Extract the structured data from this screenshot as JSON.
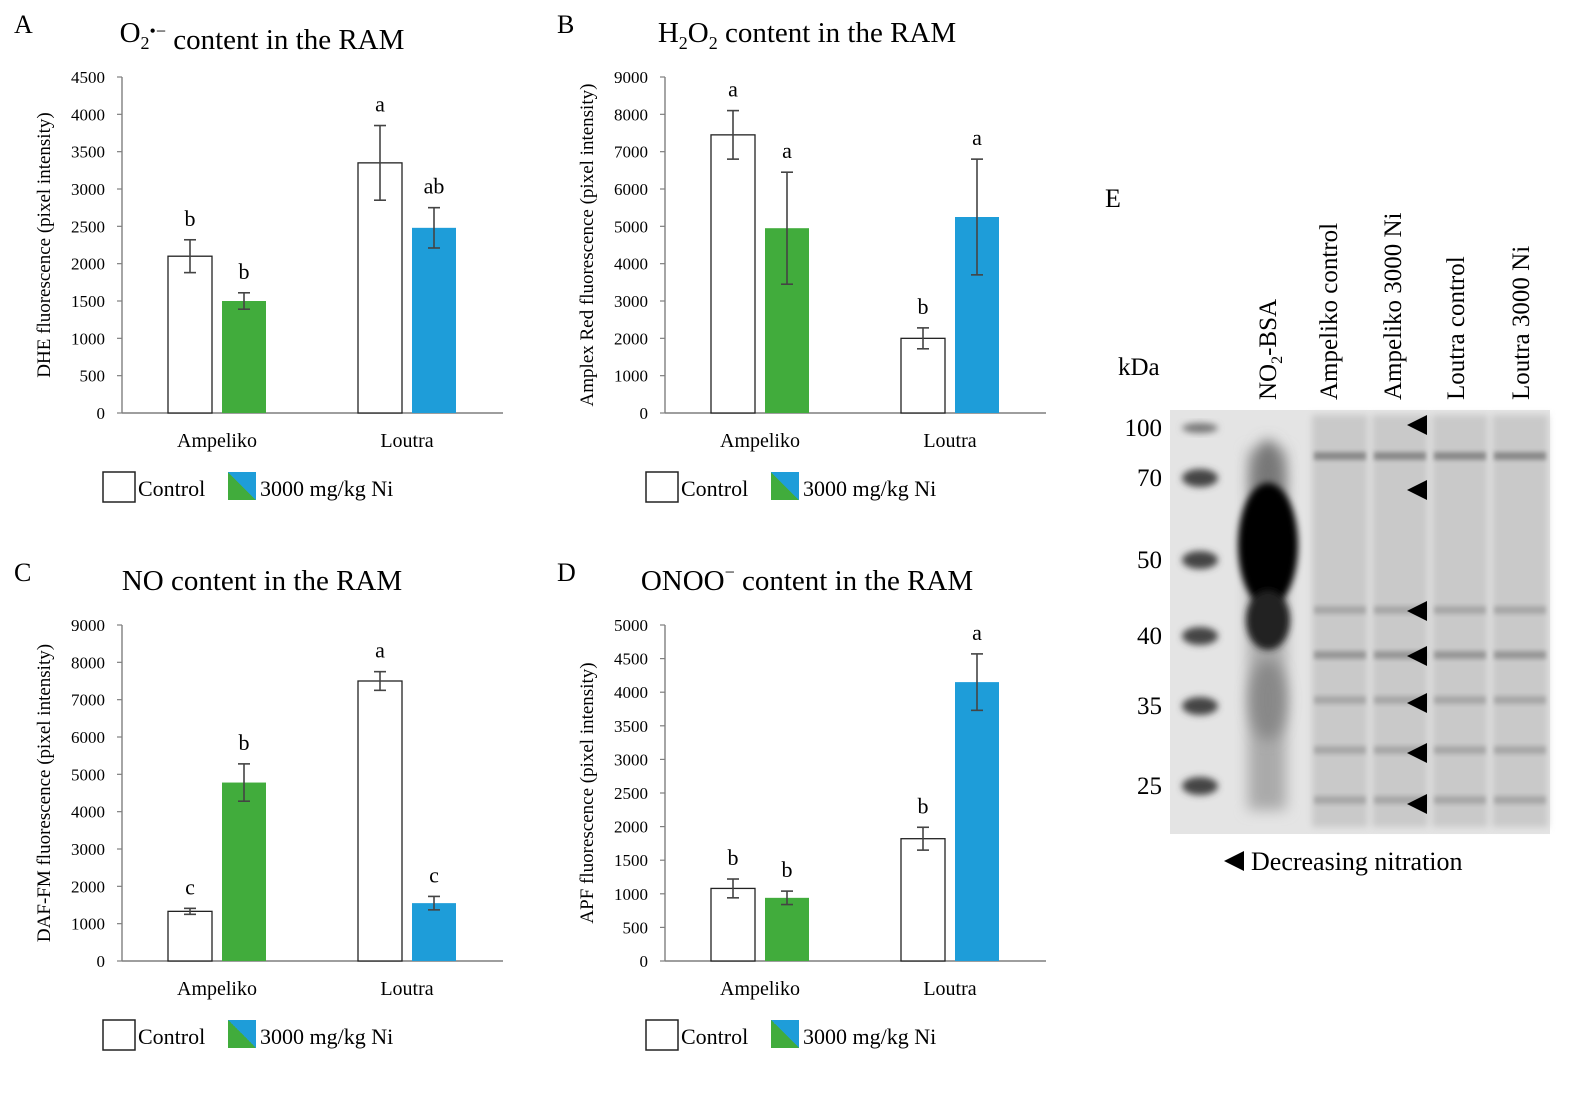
{
  "colors": {
    "control_fill": "#ffffff",
    "ampeliko_ni": "#41ac3c",
    "loutra_ni": "#1e9dd9",
    "axis": "#7f7f7f",
    "error_bar": "#444444",
    "text": "#111111"
  },
  "legend": {
    "control": "Control",
    "treatment": "3000 mg/kg Ni"
  },
  "chart_data": [
    {
      "id": "A",
      "type": "bar",
      "panel_label": "A",
      "title": "O₂•⁻ content in the RAM",
      "title_parts": [
        "O",
        "2",
        "•−",
        " content in the RAM"
      ],
      "ylabel": "DHE fluorescence (pixel intensity)",
      "xlabel": "",
      "categories": [
        "Ampeliko",
        "Loutra"
      ],
      "ylim": [
        0,
        4500
      ],
      "yticks": [
        0,
        500,
        1000,
        1500,
        2000,
        2500,
        3000,
        3500,
        4000,
        4500
      ],
      "series": [
        {
          "name": "Control",
          "values": [
            2100,
            3350
          ],
          "errors": [
            220,
            500
          ],
          "letters": [
            "b",
            "a"
          ]
        },
        {
          "name": "3000 mg/kg Ni",
          "values": [
            1500,
            2480
          ],
          "errors": [
            110,
            270
          ],
          "letters": [
            "b",
            "ab"
          ]
        }
      ]
    },
    {
      "id": "B",
      "type": "bar",
      "panel_label": "B",
      "title": "H₂O₂ content in the RAM",
      "title_parts": [
        "H",
        "2",
        "O",
        "2",
        " content in the RAM"
      ],
      "ylabel": "Amplex Red fluorescence (pixel intensity)",
      "xlabel": "",
      "categories": [
        "Ampeliko",
        "Loutra"
      ],
      "ylim": [
        0,
        9000
      ],
      "yticks": [
        0,
        1000,
        2000,
        3000,
        4000,
        5000,
        6000,
        7000,
        8000,
        9000
      ],
      "series": [
        {
          "name": "Control",
          "values": [
            7450,
            2000
          ],
          "errors": [
            650,
            280
          ],
          "letters": [
            "a",
            "b"
          ]
        },
        {
          "name": "3000 mg/kg Ni",
          "values": [
            4950,
            5250
          ],
          "errors": [
            1500,
            1550
          ],
          "letters": [
            "a",
            "a"
          ]
        }
      ]
    },
    {
      "id": "C",
      "type": "bar",
      "panel_label": "C",
      "title": "NO content in the RAM",
      "title_parts": [
        "NO content in the RAM"
      ],
      "ylabel": "DAF-FM fluorescence (pixel intensity)",
      "xlabel": "",
      "categories": [
        "Ampeliko",
        "Loutra"
      ],
      "ylim": [
        0,
        9000
      ],
      "yticks": [
        0,
        1000,
        2000,
        3000,
        4000,
        5000,
        6000,
        7000,
        8000,
        9000
      ],
      "series": [
        {
          "name": "Control",
          "values": [
            1330,
            7500
          ],
          "errors": [
            80,
            250
          ],
          "letters": [
            "c",
            "a"
          ]
        },
        {
          "name": "3000 mg/kg Ni",
          "values": [
            4780,
            1550
          ],
          "errors": [
            500,
            180
          ],
          "letters": [
            "b",
            "c"
          ]
        }
      ]
    },
    {
      "id": "D",
      "type": "bar",
      "panel_label": "D",
      "title": "ONOO⁻ content in the RAM",
      "title_parts": [
        "ONOO",
        "−",
        " content in the RAM"
      ],
      "ylabel": "APF fluorescence (pixel intensity)",
      "xlabel": "",
      "categories": [
        "Ampeliko",
        "Loutra"
      ],
      "ylim": [
        0,
        5000
      ],
      "yticks": [
        0,
        500,
        1000,
        1500,
        2000,
        2500,
        3000,
        3500,
        4000,
        4500,
        5000
      ],
      "series": [
        {
          "name": "Control",
          "values": [
            1080,
            1820
          ],
          "errors": [
            140,
            170
          ],
          "letters": [
            "b",
            "b"
          ]
        },
        {
          "name": "3000 mg/kg Ni",
          "values": [
            940,
            4150
          ],
          "errors": [
            100,
            420
          ],
          "letters": [
            "b",
            "a"
          ]
        }
      ]
    }
  ],
  "blot": {
    "panel_label": "E",
    "kda_label": "kDa",
    "markers_kda": [
      "100",
      "70",
      "50",
      "40",
      "35",
      "25"
    ],
    "lanes": [
      "NO₂-BSA",
      "Ampeliko control",
      "Ampeliko 3000 Ni",
      "Loutra control",
      "Loutra 3000 Ni"
    ],
    "lane_label_parts": [
      [
        "NO",
        "2",
        "-BSA"
      ],
      [
        "Ampeliko control"
      ],
      [
        "Ampeliko 3000 Ni"
      ],
      [
        "Loutra control"
      ],
      [
        "Loutra 3000 Ni"
      ]
    ],
    "arrow_count": 7,
    "caption": "Decreasing nitration",
    "caption_symbol": "◀"
  }
}
